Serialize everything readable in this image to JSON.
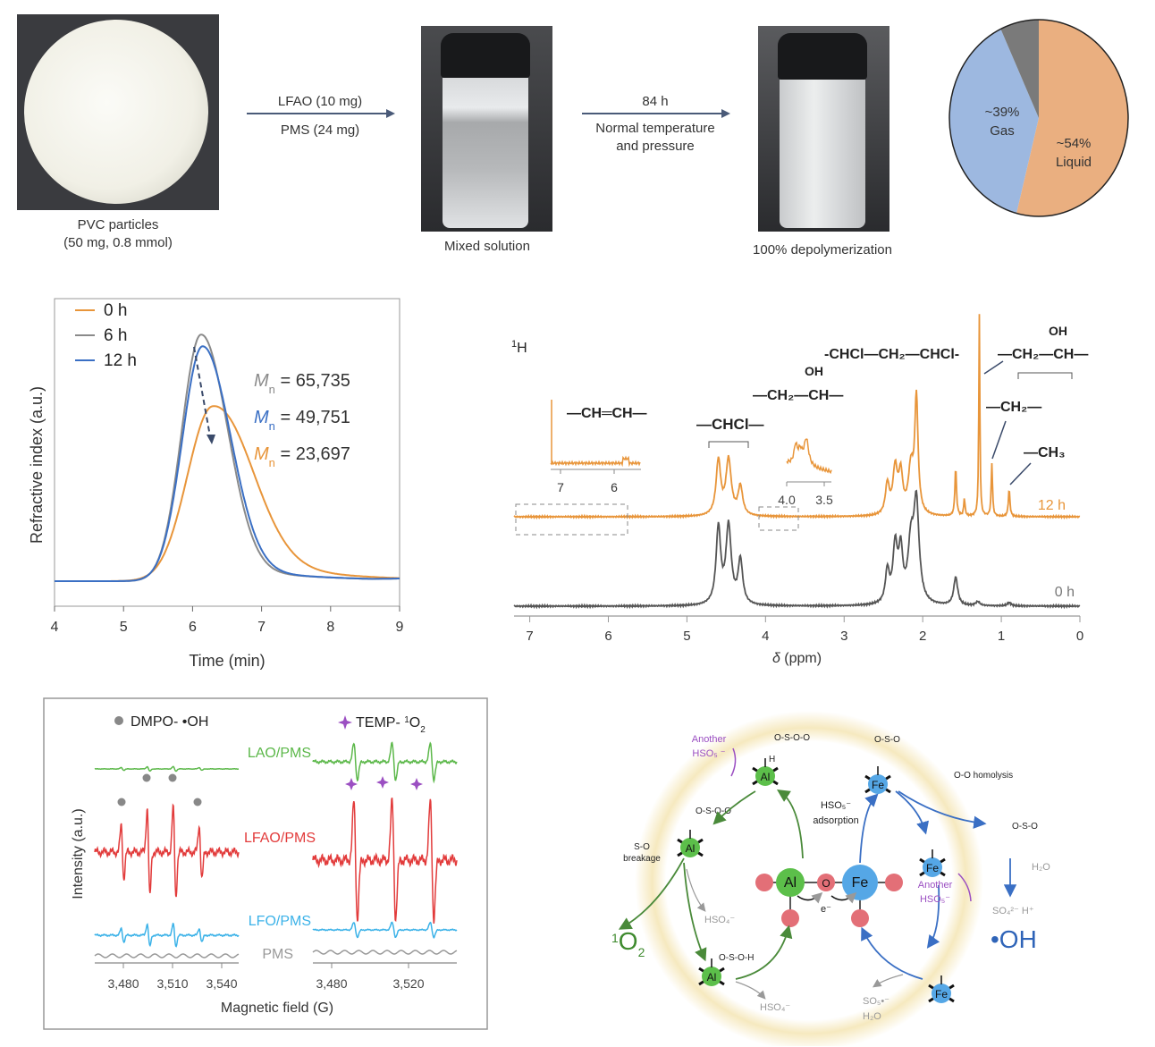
{
  "workflow": {
    "step1_caption_line1": "PVC particles",
    "step1_caption_line2": "(50 mg, 0.8 mmol)",
    "arrow1_top": "LFAO (10 mg)",
    "arrow1_bottom": "PMS (24 mg)",
    "step2_caption": "Mixed solution",
    "arrow2_top": "84 h",
    "arrow2_bottom_line1": "Normal temperature",
    "arrow2_bottom_line2": "and pressure",
    "step3_caption": "100% depolymerization"
  },
  "colors": {
    "orange": "#e8953a",
    "grey": "#8a8a8a",
    "blue": "#3a6fc4",
    "dark": "#4a4a4a",
    "green": "#5cb84a",
    "red": "#e23b3b",
    "cyan": "#3bb2e8",
    "purple": "#9b4fc2",
    "pie_gas": "#9db8e0",
    "pie_liquid": "#eaaf80",
    "pie_other": "#7a7a7a"
  },
  "chart_data": [
    {
      "type": "pie",
      "title": "",
      "slices": [
        {
          "name": "Gas",
          "label": "~39%",
          "value": 39
        },
        {
          "name": "Other",
          "label": "",
          "value": 7
        },
        {
          "name": "Liquid",
          "label": "~54%",
          "value": 54
        }
      ]
    },
    {
      "type": "line",
      "title": "",
      "xlabel": "Time (min)",
      "ylabel": "Refractive index (a.u.)",
      "xlim": [
        4,
        9
      ],
      "ylim": [
        0,
        1
      ],
      "xticks": [
        "4",
        "5",
        "6",
        "7",
        "8",
        "9"
      ],
      "legend": "top-left",
      "series": [
        {
          "name": "0 h",
          "peak_x": 6.12,
          "peak_y": 0.83,
          "width_left": 0.28,
          "width_right": 0.38,
          "tail": 0.06
        },
        {
          "name": "6 h",
          "peak_x": 6.14,
          "peak_y": 0.79,
          "width_left": 0.29,
          "width_right": 0.4,
          "tail": 0.06
        },
        {
          "name": "12 h",
          "peak_x": 6.28,
          "peak_y": 0.58,
          "width_left": 0.36,
          "width_right": 0.55,
          "tail": 0.1
        }
      ],
      "legend_entries": [
        {
          "label": "0 h",
          "color_key": "orange"
        },
        {
          "label": "6 h",
          "color_key": "grey"
        },
        {
          "label": "12 h",
          "color_key": "blue"
        }
      ],
      "annotations": [
        {
          "symbol": "M",
          "sub": "n",
          "text": "= 65,735",
          "color_key": "grey"
        },
        {
          "symbol": "M",
          "sub": "n",
          "text": "= 49,751",
          "color_key": "blue"
        },
        {
          "symbol": "M",
          "sub": "n",
          "text": "= 23,697",
          "color_key": "orange"
        }
      ]
    },
    {
      "type": "line",
      "title": "1H",
      "xlabel": "δ (ppm)",
      "xlim": [
        7.2,
        0
      ],
      "xticks": [
        "7",
        "6",
        "5",
        "4",
        "3",
        "2",
        "1",
        "0"
      ],
      "series": [
        {
          "name": "12 h",
          "peaks_ppm": [
            4.6,
            4.47,
            4.32,
            2.45,
            2.35,
            2.28,
            2.15,
            2.08,
            1.58,
            1.47,
            1.28,
            1.12,
            0.9
          ],
          "rel_heights": [
            0.72,
            0.73,
            0.38,
            0.4,
            0.6,
            0.5,
            0.6,
            1.5,
            0.64,
            0.23,
            2.65,
            0.7,
            0.36
          ]
        },
        {
          "name": "0 h",
          "peaks_ppm": [
            4.6,
            4.47,
            4.32,
            2.45,
            2.35,
            2.28,
            2.15,
            2.08,
            1.58,
            1.3,
            0.9
          ],
          "rel_heights": [
            0.95,
            0.97,
            0.55,
            0.4,
            0.7,
            0.6,
            0.7,
            1.2,
            0.35,
            0.05,
            0.04
          ]
        }
      ],
      "insets": [
        {
          "label": "—CH=CH—",
          "xticks": [
            "7",
            "6"
          ]
        },
        {
          "label": "—CH₂—CH(OH)—",
          "xticks": [
            "4.0",
            "3.5"
          ]
        }
      ],
      "assignments": [
        "—CHCl—",
        "-CHCl—CH₂—CHCl-",
        "—CH₂—CH(OH)—",
        "—CH₂—",
        "—CH₃"
      ]
    },
    {
      "type": "line",
      "title": "EPR",
      "xlabel": "Magnetic field (G)",
      "ylabel": "Intensity (a.u.)",
      "panels": [
        {
          "name": "DMPO- •OH",
          "xlim": [
            3465,
            3548
          ],
          "xticks": [
            "3,480",
            "3,510",
            "3,540"
          ],
          "lines_G": [
            3481,
            3496,
            3511,
            3526
          ]
        },
        {
          "name": "TEMP- 1O2",
          "xlim": [
            3470,
            3534
          ],
          "xticks": [
            "3,480",
            "3,520"
          ],
          "lines_G": [
            3489,
            3506,
            3523
          ]
        }
      ],
      "series": [
        {
          "name": "LAO/PMS",
          "color_key": "green",
          "dmpo_amp": 0.05,
          "temp_amp": 0.55
        },
        {
          "name": "LFAO/PMS",
          "color_key": "red",
          "dmpo_amp": 1.0,
          "temp_amp": 1.8
        },
        {
          "name": "LFO/PMS",
          "color_key": "cyan",
          "dmpo_amp": 0.25,
          "temp_amp": 0.22
        },
        {
          "name": "PMS",
          "color_key": "grey",
          "dmpo_amp": 0.03,
          "temp_amp": 0.01
        }
      ]
    }
  ],
  "gpc": {
    "ylabel": "Refractive index (a.u.)",
    "xlabel": "Time (min)"
  },
  "nmr": {
    "title_sup": "1",
    "title": "H",
    "xlabel_sym": "δ",
    "xlabel": " (ppm)",
    "label_12h": "12 h",
    "label_0h": "0 h",
    "chcl": "—CHCl—",
    "chch": "—CH═CH—",
    "ch2chcl": "-CHCl—CH₂—CHCl-",
    "ch2choh": "—CH₂—CH—",
    "oh": "OH",
    "ch2": "—CH₂—",
    "ch3": "—CH₃",
    "inset1_t1": "7",
    "inset1_t2": "6",
    "inset2_t1": "4.0",
    "inset2_t2": "3.5"
  },
  "epr": {
    "legend1": "DMPO- •OH",
    "legend2_pre": "TEMP- ",
    "legend2_sup": "1",
    "legend2_post": "O",
    "legend2_sub": "2",
    "ylabel": "Intensity (a.u.)",
    "xlabel": "Magnetic field (G)",
    "s_lao": "LAO/PMS",
    "s_lfao": "LFAO/PMS",
    "s_lfo": "LFO/PMS",
    "s_pms": "PMS",
    "l_t1": "3,480",
    "l_t2": "3,510",
    "l_t3": "3,540",
    "r_t1": "3,480",
    "r_t2": "3,520"
  },
  "mechanism": {
    "another_hso5_1": "Another",
    "another_hso5_1b": "HSO₅ ⁻",
    "hso5_adsorption_1": "HSO₅⁻",
    "hso5_adsorption_2": "adsorption",
    "so_breakage_1": "S-O",
    "so_breakage_2": "breakage",
    "oo_homolysis": "O-O homolysis",
    "singlet_o2_sup": "1",
    "singlet_o2": "O",
    "singlet_o2_sub": "2",
    "hso4_1": "HSO₄⁻",
    "hso4_2": "HSO₄⁻",
    "so5_1": "SO₅•⁻",
    "h2o_1": "H₂O",
    "h2o_2": "H₂O",
    "so4_h": "SO₄²⁻  H⁺",
    "oh_radical": "•OH",
    "another_hso5_2": "Another",
    "another_hso5_2b": "HSO₅⁻",
    "al": "Al",
    "fe": "Fe",
    "o": "O",
    "e": "e⁻"
  }
}
